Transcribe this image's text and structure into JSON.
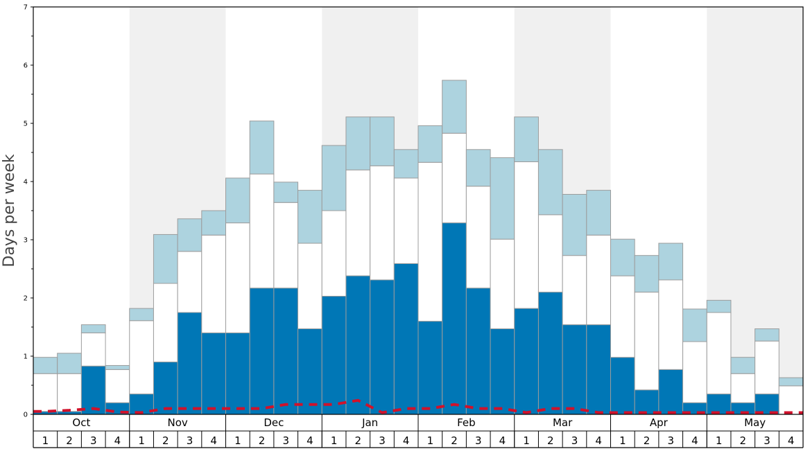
{
  "chart_data": {
    "type": "bar",
    "stacked": true,
    "ylabel": "Days per week",
    "ylim": [
      0,
      7
    ],
    "yticks": [
      "0",
      "1",
      "2",
      "3",
      "4",
      "5",
      "6",
      "7"
    ],
    "months": [
      "Oct",
      "Nov",
      "Dec",
      "Jan",
      "Feb",
      "Mar",
      "Apr",
      "May"
    ],
    "weeks_per_month": [
      "1",
      "2",
      "3",
      "4"
    ],
    "shaded_months": [
      "Nov",
      "Jan",
      "Mar",
      "May"
    ],
    "series": [
      {
        "key": "dark",
        "values": [
          0.05,
          0.05,
          0.83,
          0.2,
          0.35,
          0.9,
          1.75,
          1.4,
          1.4,
          2.17,
          2.17,
          1.47,
          2.03,
          2.38,
          2.31,
          2.59,
          1.6,
          3.29,
          2.17,
          1.47,
          1.82,
          2.1,
          1.54,
          1.54,
          0.98,
          0.42,
          0.77,
          0.2,
          0.35,
          0.2,
          0.35,
          0.0
        ]
      },
      {
        "key": "white",
        "values": [
          0.65,
          0.65,
          0.57,
          0.57,
          1.26,
          1.35,
          1.05,
          1.68,
          1.89,
          1.96,
          1.47,
          1.47,
          1.47,
          1.82,
          1.96,
          1.47,
          2.73,
          1.54,
          1.75,
          1.54,
          2.52,
          1.33,
          1.19,
          1.54,
          1.4,
          1.68,
          1.54,
          1.05,
          1.4,
          0.5,
          0.91,
          0.49
        ]
      },
      {
        "key": "light",
        "values": [
          0.28,
          0.35,
          0.14,
          0.07,
          0.21,
          0.84,
          0.56,
          0.42,
          0.77,
          0.91,
          0.35,
          0.91,
          1.12,
          0.91,
          0.84,
          0.49,
          0.63,
          0.91,
          0.63,
          1.4,
          0.77,
          1.12,
          1.05,
          0.77,
          0.63,
          0.63,
          0.63,
          0.56,
          0.21,
          0.28,
          0.21,
          0.14
        ]
      }
    ],
    "dashed_line": [
      0.05,
      0.07,
      0.1,
      0.04,
      0.03,
      0.1,
      0.1,
      0.1,
      0.1,
      0.1,
      0.17,
      0.17,
      0.17,
      0.24,
      0.03,
      0.1,
      0.1,
      0.17,
      0.1,
      0.1,
      0.03,
      0.1,
      0.1,
      0.03,
      0.03,
      0.03,
      0.03,
      0.03,
      0.03,
      0.03,
      0.03,
      0.03
    ],
    "colors": {
      "dark": "#0077b6",
      "white": "#ffffff",
      "light": "#add3df",
      "bar_stroke": "#9c9c9c",
      "shade": "#f0f0f0",
      "dashed_line": "#d0122b"
    },
    "grid": false,
    "legend": "none"
  }
}
